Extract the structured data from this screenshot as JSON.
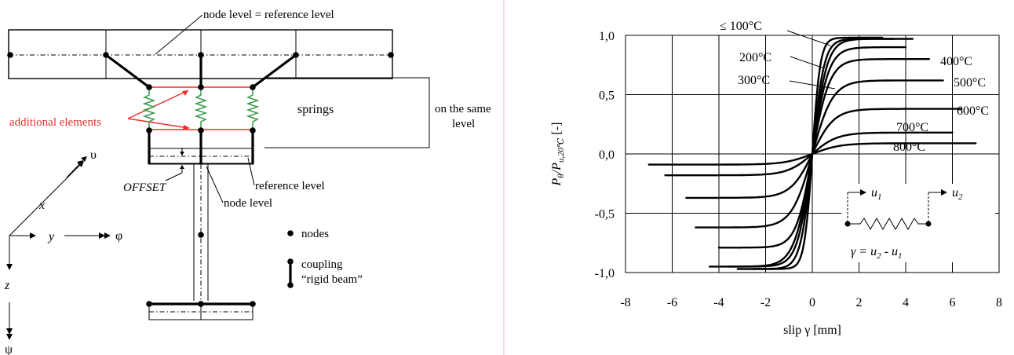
{
  "diagram": {
    "node_reference_label": "node level = reference level",
    "springs_label": "springs",
    "same_level_label_1": "on the same",
    "same_level_label_2": "level",
    "additional_label": "additional elements",
    "offset_label": "OFFSET",
    "reference_level_label": "reference level",
    "node_level_label": "node level",
    "nodes_label": "nodes",
    "coupling_label_1": "coupling",
    "coupling_label_2": "“rigid beam”",
    "axes": {
      "x": "x",
      "y": "y",
      "z": "z",
      "upsilon": "υ",
      "phi": "φ",
      "psi": "ψ"
    },
    "colors": {
      "additional": "#e8302b",
      "spring": "#3a9b4a",
      "divider": "#f0b8b8"
    }
  },
  "chart_data": {
    "type": "line",
    "xlabel": "slip γ [mm]",
    "ylabel_main": "P",
    "ylabel_sub1": "θ",
    "ylabel_mid": "/P",
    "ylabel_sub2": "u,20℃",
    "ylabel_unit": " [-]",
    "xlim": [
      -8,
      8
    ],
    "ylim": [
      -1.0,
      1.0
    ],
    "xticks": [
      -8,
      -6,
      -4,
      -2,
      0,
      2,
      4,
      6,
      8
    ],
    "xtick_labels": [
      "-8",
      "-6",
      "-4",
      "-2",
      "0",
      "2",
      "4",
      "6",
      "8"
    ],
    "yticks": [
      1.0,
      0.5,
      0.0,
      -0.5,
      -1.0
    ],
    "ytick_labels": [
      "1,0",
      "0,5",
      "0,0",
      "-0,5",
      "-1,0"
    ],
    "grid": true,
    "series": [
      {
        "name": "≤ 100°C",
        "plateau": 0.98,
        "xmax": 3.0,
        "xmin": -2.5,
        "k": 0.55
      },
      {
        "name": "200°C",
        "plateau": 0.97,
        "xmax": 4.3,
        "xmin": -3.2,
        "k": 0.8
      },
      {
        "name": "",
        "plateau": 0.97,
        "xmax": 3.5,
        "xmin": -3.6,
        "k": 1.0
      },
      {
        "name": "400°C",
        "plateau": 0.8,
        "xmax": 5.0,
        "xmin": -4.4,
        "k": 1.2
      },
      {
        "name": "300°C",
        "plateau": 0.9,
        "xmax": 4.0,
        "xmin": -4.0,
        "k": 1.1
      },
      {
        "name": "500°C",
        "plateau": 0.62,
        "xmax": 5.6,
        "xmin": -5.0,
        "k": 1.4
      },
      {
        "name": "600°C",
        "plateau": 0.38,
        "xmax": 6.4,
        "xmin": -5.4,
        "k": 1.5
      },
      {
        "name": "700°C",
        "plateau": 0.18,
        "xmax": 6.0,
        "xmin": -6.3,
        "k": 1.7
      },
      {
        "name": "800°C",
        "plateau": 0.09,
        "xmax": 7.0,
        "xmin": -7.0,
        "k": 1.9
      }
    ],
    "negative_plateaus": [
      -0.97,
      -0.97,
      -0.95,
      -0.95,
      -0.79,
      -0.62,
      -0.37,
      -0.18,
      -0.09
    ],
    "inset": {
      "u1": "u",
      "u1_sub": "1",
      "u2": "u",
      "u2_sub": "2",
      "formula": "γ = u",
      "formula_sub2": "2",
      "formula_mid": " - u",
      "formula_sub1": "1"
    }
  }
}
